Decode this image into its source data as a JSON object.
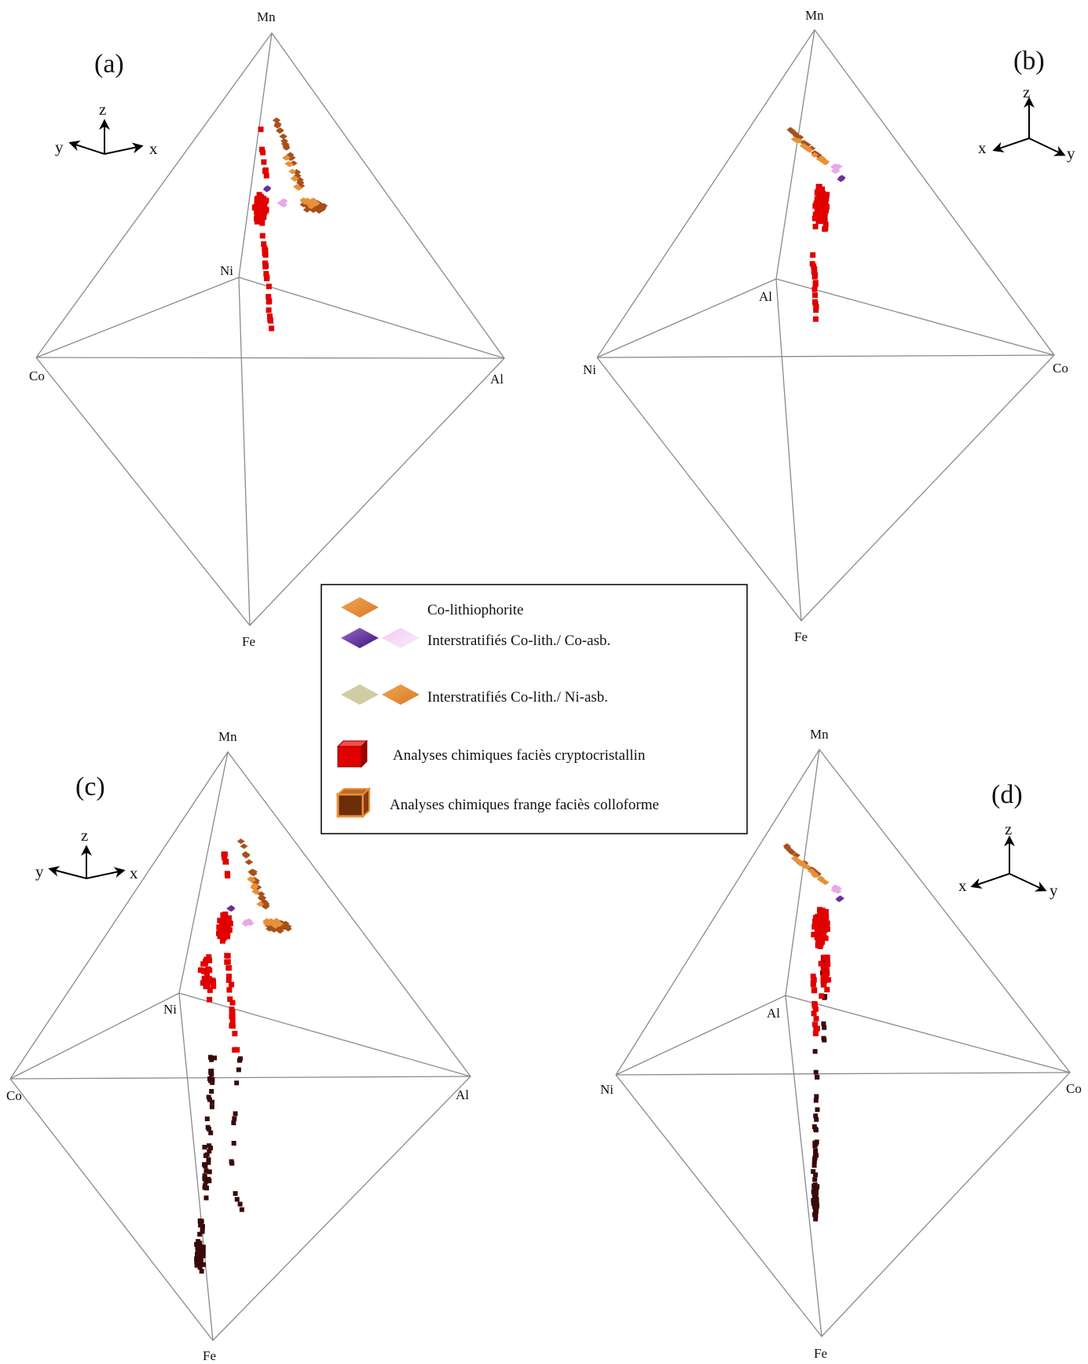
{
  "panels": [
    {
      "id": "a",
      "label": "(a)",
      "vertices": {
        "top": "Mn",
        "left": "Co",
        "right": "Al",
        "back": "Ni",
        "bottom": "Fe"
      },
      "axes": {
        "up": "z",
        "left": "y",
        "right": "x"
      },
      "has_dark_points": false
    },
    {
      "id": "b",
      "label": "(b)",
      "vertices": {
        "top": "Mn",
        "left": "Ni",
        "right": "Co",
        "back": "Al",
        "bottom": "Fe"
      },
      "axes": {
        "up": "z",
        "left": "x",
        "right": "y"
      },
      "has_dark_points": false
    },
    {
      "id": "c",
      "label": "(c)",
      "vertices": {
        "top": "Mn",
        "left": "Co",
        "right": "Al",
        "back": "Ni",
        "bottom": "Fe"
      },
      "axes": {
        "up": "z",
        "left": "y",
        "right": "x"
      },
      "has_dark_points": true
    },
    {
      "id": "d",
      "label": "(d)",
      "vertices": {
        "top": "Mn",
        "left": "Ni",
        "right": "Co",
        "back": "Al",
        "bottom": "Fe"
      },
      "axes": {
        "up": "z",
        "left": "x",
        "right": "y"
      },
      "has_dark_points": true
    }
  ],
  "legend": {
    "items": [
      {
        "label": "Co-lithiophorite",
        "symbols": [
          "diamond-orange"
        ]
      },
      {
        "label": "Interstratifiés Co-lith./ Co-asb.",
        "symbols": [
          "diamond-purple",
          "diamond-pink"
        ]
      },
      {
        "label": "Interstratifiés Co-lith./ Ni-asb.",
        "symbols": [
          "diamond-khaki",
          "diamond-orange"
        ]
      },
      {
        "label": "Analyses chimiques faciès cryptocristallin",
        "symbols": [
          "cube-red"
        ]
      },
      {
        "label": "Analyses chimiques frange faciès colloforme",
        "symbols": [
          "cube-brown"
        ]
      }
    ]
  },
  "colors": {
    "orange": "#E8913A",
    "purple": "#6A2FA0",
    "pink": "#E9A8E8",
    "khaki": "#D2CCA4",
    "red": "#E00000",
    "brown": "#A8501A",
    "dark": "#3A0A0A",
    "edge": "#8a8a8a"
  }
}
